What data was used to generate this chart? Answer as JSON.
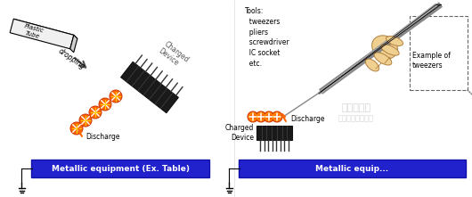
{
  "bg_color": "#ffffff",
  "left_panel": {
    "plastic_tube_label": "Plastic\nTube",
    "dropping_label": "dropping",
    "charged_device_label": "Charged\nDevice",
    "discharge_label": "Discharge",
    "metallic_label": "Metallic equipment (Ex. Table)",
    "metallic_box_color": "#2222cc",
    "metallic_text_color": "#ffffff"
  },
  "right_panel": {
    "tools_label": "Tools:\n  tweezers\n  pliers\n  screwdriver\n  IC socket\n  etc.",
    "charged_device_label": "Charged\nDevice",
    "discharge_label": "Discharge",
    "example_label": "Example of\ntweezers",
    "metallic_label": "Metallic equip...",
    "metallic_box_color": "#2222cc",
    "metallic_text_color": "#ffffff"
  },
  "orange_color": "#ff6600",
  "chip_color": "#222222",
  "chip_pin_color": "#111111",
  "arrow_color": "#333333",
  "line_color": "#333333",
  "ground_color": "#000000"
}
